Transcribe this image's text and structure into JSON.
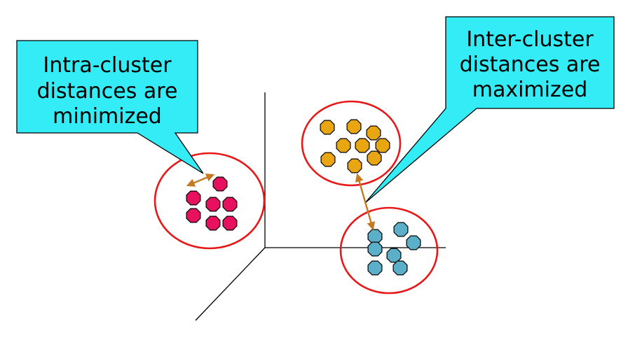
{
  "callouts": {
    "intra": {
      "lines": [
        "Intra-cluster",
        "distances are",
        "minimized"
      ]
    },
    "inter": {
      "lines": [
        "Inter-cluster",
        "distances are",
        "maximized"
      ]
    }
  },
  "colors": {
    "callout_fill": "#33ecf5",
    "callout_border": "#000000",
    "cluster_outline": "#e81818",
    "pink_points": "#e8115f",
    "orange_points": "#e8a612",
    "blue_points": "#5bafc9",
    "arrow": "#c47a22",
    "axis": "#000000"
  },
  "clusters": [
    {
      "name": "pink",
      "point_count": 7
    },
    {
      "name": "orange",
      "point_count": 9
    },
    {
      "name": "blue",
      "point_count": 7
    }
  ]
}
